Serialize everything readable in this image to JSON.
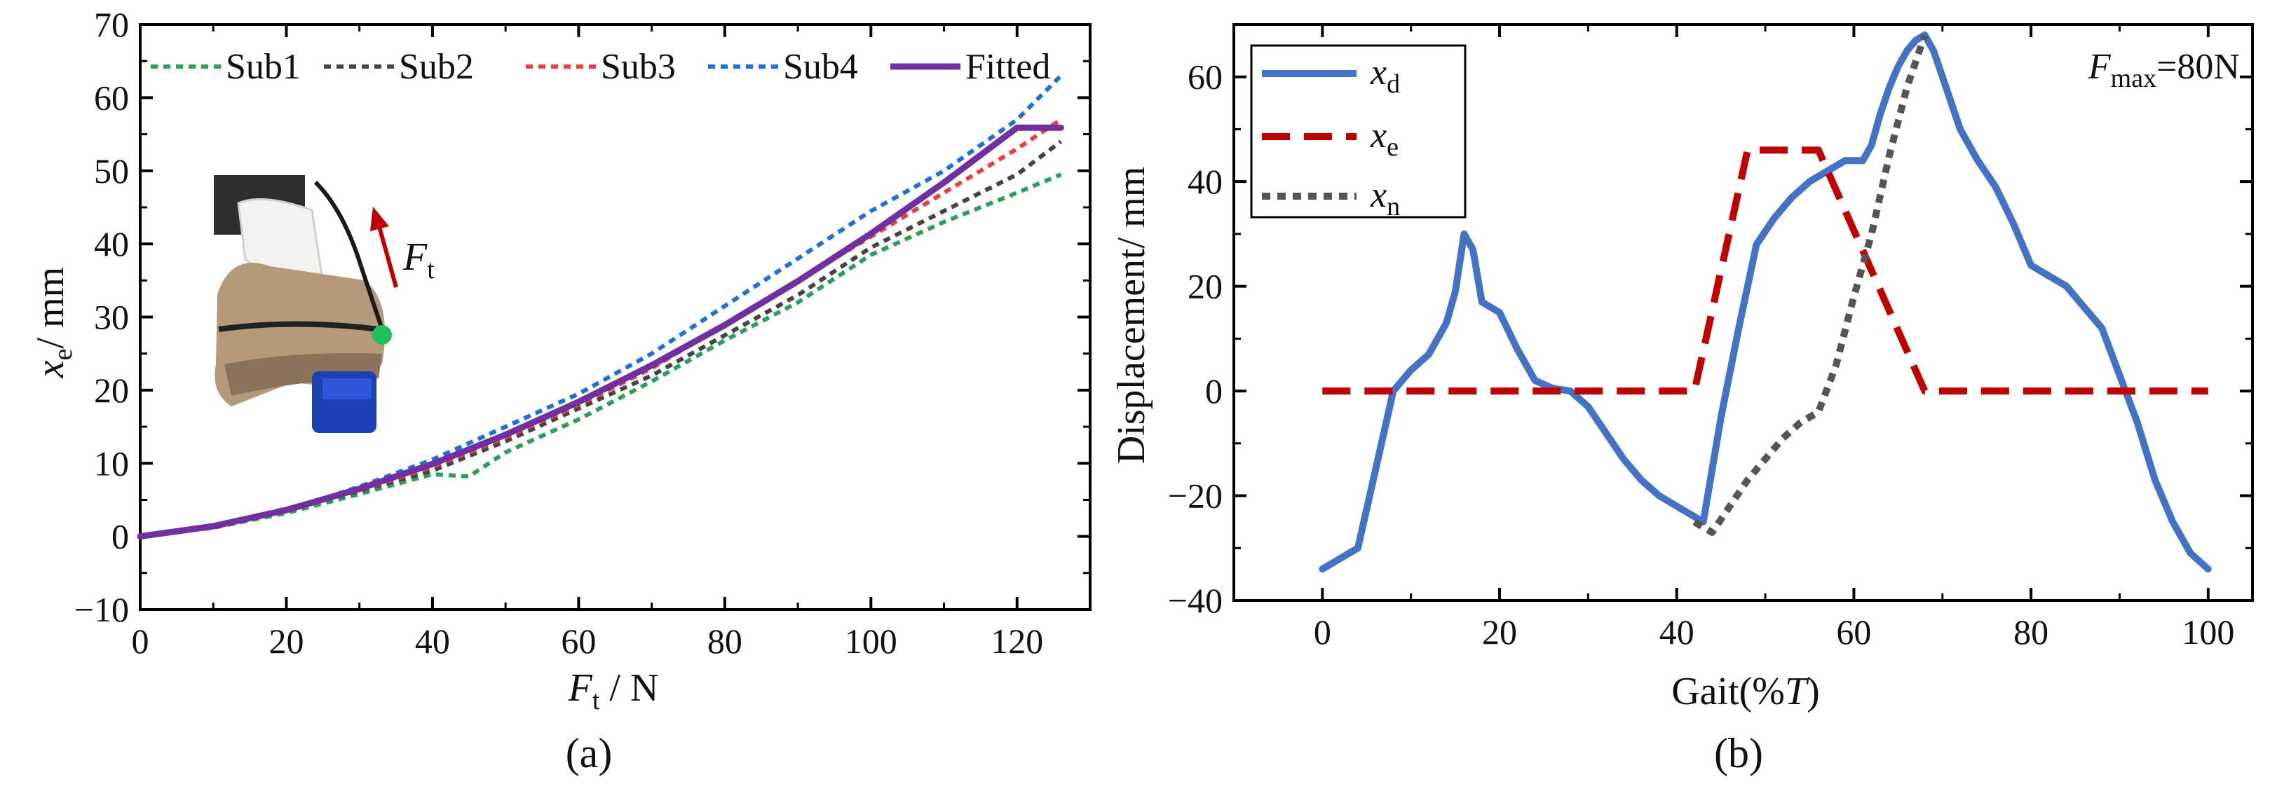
{
  "chart_data": [
    {
      "type": "line",
      "panel_label": "(a)",
      "xlabel": {
        "main": "F",
        "sub": "t",
        "unit": " / N"
      },
      "ylabel": {
        "main": "x",
        "sub": "e",
        "unit": "/ mm"
      },
      "xlim": [
        0,
        130
      ],
      "ylim": [
        -10,
        70
      ],
      "xticks": [
        0,
        20,
        40,
        60,
        80,
        100,
        120
      ],
      "yticks": [
        -10,
        0,
        10,
        20,
        30,
        40,
        50,
        60,
        70
      ],
      "grid": false,
      "legend": "top",
      "inset": {
        "force_label": {
          "main": "F",
          "sub": "t"
        }
      },
      "series": [
        {
          "name": "Sub1",
          "style": "dotted",
          "color": "#2ca05a",
          "x": [
            0,
            10,
            20,
            30,
            40,
            45,
            50,
            60,
            70,
            80,
            90,
            100,
            110,
            120,
            126
          ],
          "y": [
            0,
            1.2,
            3.2,
            5.8,
            8.5,
            8.2,
            11.5,
            16,
            21.2,
            26.8,
            32,
            38.5,
            43,
            47,
            49.5
          ]
        },
        {
          "name": "Sub2",
          "style": "dotted",
          "color": "#444444",
          "x": [
            0,
            10,
            20,
            30,
            40,
            50,
            60,
            70,
            80,
            90,
            100,
            110,
            120,
            126
          ],
          "y": [
            0,
            1.2,
            3.6,
            6.2,
            9,
            13,
            17.5,
            22,
            27.5,
            33,
            39.5,
            44.5,
            49.5,
            54
          ]
        },
        {
          "name": "Sub3",
          "style": "dotted",
          "color": "#e8403a",
          "x": [
            0,
            10,
            20,
            30,
            40,
            50,
            60,
            70,
            80,
            90,
            100,
            110,
            120,
            126
          ],
          "y": [
            0,
            1.5,
            3.8,
            6.3,
            9.5,
            13.5,
            18,
            23,
            29,
            35,
            41,
            47,
            53,
            57
          ]
        },
        {
          "name": "Sub4",
          "style": "dotted",
          "color": "#1f6fdb",
          "x": [
            0,
            10,
            20,
            30,
            40,
            50,
            60,
            70,
            80,
            90,
            100,
            110,
            120,
            126
          ],
          "y": [
            0,
            1.3,
            3.5,
            6.8,
            10.5,
            15,
            19.5,
            25,
            31.5,
            38,
            44.5,
            50,
            57,
            63
          ]
        },
        {
          "name": "Fitted",
          "style": "solid",
          "color": "#7030a0",
          "x": [
            0,
            10,
            20,
            30,
            40,
            50,
            60,
            70,
            80,
            90,
            100,
            110,
            120,
            126
          ],
          "y": [
            0,
            1.4,
            3.6,
            6.5,
            9.9,
            13.9,
            18.4,
            23.4,
            28.9,
            34.9,
            41.4,
            48.4,
            55.9,
            55.9
          ]
        }
      ]
    },
    {
      "type": "line",
      "panel_label": "(b)",
      "xlabel": {
        "main": "Gait(%",
        "italic": "T",
        "unit": ")"
      },
      "ylabel": "Displacement/ mm",
      "xlim": [
        -10,
        105
      ],
      "ylim": [
        -40,
        70
      ],
      "xticks": [
        0,
        20,
        40,
        60,
        80,
        100
      ],
      "yticks": [
        -40,
        -20,
        0,
        20,
        40,
        60
      ],
      "grid": false,
      "legend": "top-left",
      "annotation": {
        "main": "F",
        "sub": "max",
        "rest": "=80N"
      },
      "series": [
        {
          "name": {
            "main": "x",
            "sub": "d"
          },
          "style": "solid",
          "color": "#4472c4",
          "x": [
            0,
            2,
            4,
            6,
            8,
            10,
            12,
            14,
            15,
            16,
            17,
            18,
            19,
            20,
            22,
            24,
            26,
            28,
            30,
            32,
            34,
            36,
            38,
            40,
            42,
            43,
            45,
            47,
            49,
            51,
            53,
            55,
            57,
            59,
            61,
            62,
            63,
            64,
            65,
            66,
            67,
            68,
            69,
            70,
            72,
            74,
            76,
            78,
            80,
            82,
            84,
            86,
            88,
            90,
            92,
            94,
            96,
            98,
            100
          ],
          "y": [
            -34,
            -32,
            -30,
            -15,
            0,
            4,
            7,
            13,
            19,
            30,
            27,
            17,
            16,
            15,
            8,
            2,
            0.5,
            0,
            -3,
            -8,
            -13,
            -17,
            -20,
            -22,
            -24,
            -25,
            -5,
            12,
            28,
            33,
            37,
            40,
            42,
            44,
            44,
            47,
            53,
            58,
            62,
            65,
            67,
            68,
            65,
            60,
            50,
            44,
            39,
            32,
            24,
            22,
            20,
            16,
            12,
            3,
            -6,
            -17,
            -25,
            -31,
            -34
          ]
        },
        {
          "name": {
            "main": "x",
            "sub": "e"
          },
          "style": "dashed",
          "color": "#c00000",
          "x": [
            0,
            42,
            48,
            56,
            68,
            100
          ],
          "y": [
            0,
            0,
            46,
            46,
            0,
            0
          ]
        },
        {
          "name": {
            "main": "x",
            "sub": "n"
          },
          "style": "dotted",
          "color": "#555555",
          "x": [
            42,
            44,
            46,
            48,
            50,
            52,
            54,
            56,
            58,
            60,
            62,
            64,
            66,
            68
          ],
          "y": [
            -25,
            -27,
            -22,
            -17,
            -13,
            -9,
            -6,
            -4,
            5,
            18,
            30,
            45,
            58,
            68
          ]
        }
      ]
    }
  ]
}
